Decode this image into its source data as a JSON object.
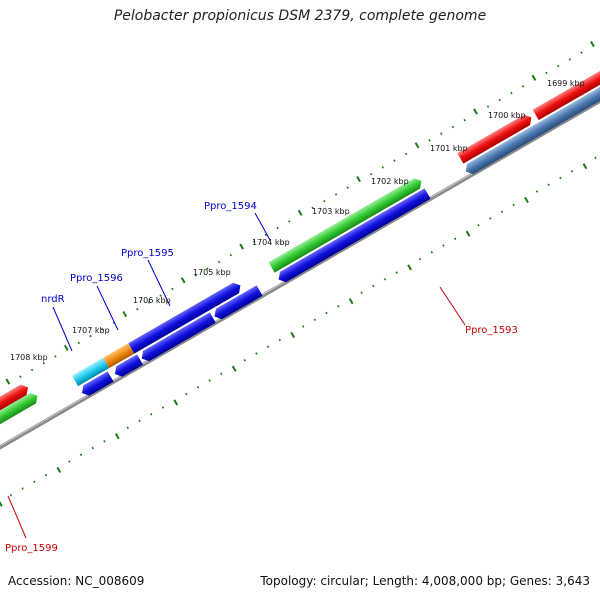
{
  "title": "Pelobacter propionicus DSM 2379, complete genome",
  "footer": {
    "accession": "Accession: NC_008609",
    "topology": "Topology: circular; Length: 4,008,000 bp; Genes: 3,643"
  },
  "kbp_labels": [
    "1699 kbp",
    "1700 kbp",
    "1701 kbp",
    "1702 kbp",
    "1703 kbp",
    "1704 kbp",
    "1705 kbp",
    "1706 kbp",
    "1707 kbp",
    "1708 kbp"
  ],
  "gene_labels": [
    {
      "id": "nrdR",
      "text": "nrdR",
      "color": "#0000cc"
    },
    {
      "id": "ppro-1596",
      "text": "Ppro_1596",
      "color": "#0000cc"
    },
    {
      "id": "ppro-1595",
      "text": "Ppro_1595",
      "color": "#0000cc"
    },
    {
      "id": "ppro-1594",
      "text": "Ppro_1594",
      "color": "#0000cc"
    },
    {
      "id": "ppro-1593",
      "text": "Ppro_1593",
      "color": "#cc0000"
    },
    {
      "id": "ppro-1599",
      "text": "Ppro_1599",
      "color": "#cc0000"
    }
  ],
  "colors": {
    "backbone": "#8a8a8a",
    "tick": "#1a7a1a",
    "red": "#ee1111",
    "green": "#33cc33",
    "blue": "#1111dd",
    "steelblue": "#4a78b0",
    "orange": "#f08a10",
    "cyan": "#22ccee"
  }
}
